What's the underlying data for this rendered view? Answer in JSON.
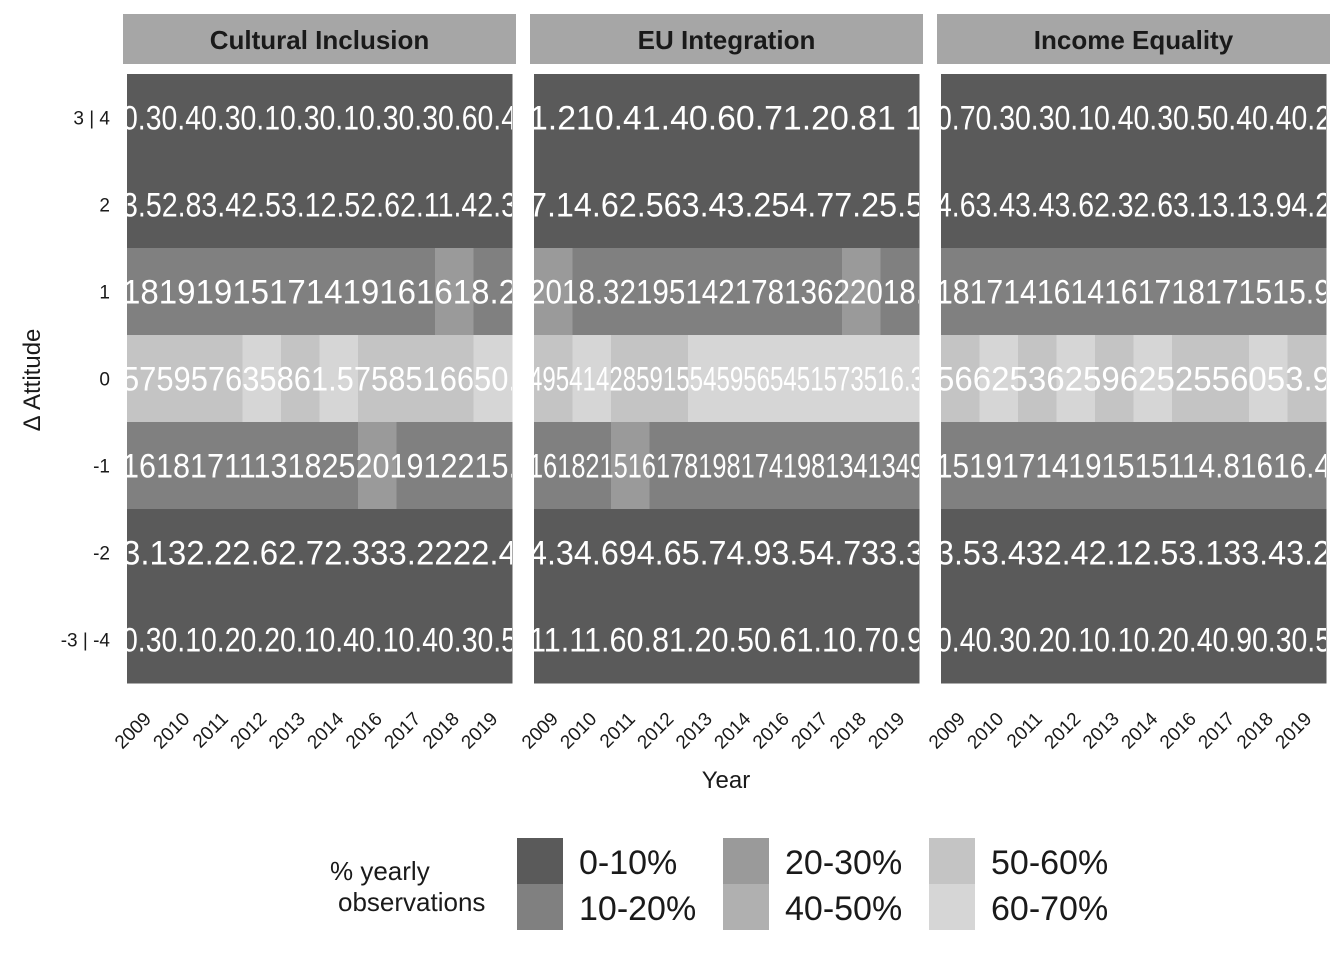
{
  "chart_data": {
    "type": "heatmap",
    "xlabel": "Year",
    "ylabel": "Δ Attitude",
    "x": [
      "2009",
      "2010",
      "2011",
      "2012",
      "2013",
      "2014",
      "2016",
      "2017",
      "2018",
      "2019"
    ],
    "y": [
      "3 | 4",
      "2",
      "1",
      "0",
      "-1",
      "-2",
      "-3 | -4"
    ],
    "facets": [
      {
        "title": "Cultural Inclusion",
        "cells": [
          [
            "0.3",
            "0.4",
            "0.3",
            "0.1",
            "0.3",
            "0.1",
            "0.3",
            "0.3",
            "0.6",
            "0.4"
          ],
          [
            "3.5",
            "2.8",
            "3.4",
            "2.5",
            "3.1",
            "2.5",
            "2.6",
            "2.1",
            "1.4",
            "2.3"
          ],
          [
            "18",
            "19",
            "19",
            "15",
            "17",
            "14",
            "19",
            "16",
            "26",
            "18.2"
          ],
          [
            "57",
            "59",
            "57",
            "63",
            "58",
            "61",
            "57",
            "58",
            "51",
            "60"
          ],
          [
            "16",
            "18",
            "17",
            "13",
            "18",
            "15",
            "24",
            "19",
            "21",
            "15"
          ],
          [
            "3.1",
            "3",
            "2.2",
            "2.6",
            "2.7",
            "2.3",
            "3",
            "3.2",
            "2",
            "2.4"
          ],
          [
            "0.3",
            "0.1",
            "0.2",
            "0.2",
            "0.1",
            "0.4",
            "0.1",
            "0.4",
            "0.3",
            "0.5"
          ]
        ],
        "bins": [
          [
            0,
            0,
            0,
            0,
            0,
            0,
            0,
            0,
            0,
            0
          ],
          [
            0,
            0,
            0,
            0,
            0,
            0,
            0,
            0,
            0,
            0
          ],
          [
            1,
            1,
            1,
            1,
            1,
            1,
            1,
            1,
            2,
            1
          ],
          [
            4,
            4,
            4,
            5,
            4,
            5,
            4,
            4,
            4,
            5
          ],
          [
            1,
            1,
            1,
            1,
            1,
            1,
            2,
            1,
            1,
            1
          ],
          [
            0,
            0,
            0,
            0,
            0,
            0,
            0,
            0,
            0,
            0
          ],
          [
            0,
            0,
            0,
            0,
            0,
            0,
            0,
            0,
            0,
            0
          ]
        ],
        "line_labels": {
          "3 | 4": "0.30.40.30.10.30.10.30.30.60.4",
          "2": "3.52.83.42.53.12.52.62.11.42.3",
          "1": "18191915171419161618.2",
          "0": "575957635861.5758516650.",
          "-1": "16181711131825201912215.",
          "-2": "3.132.22.62.72.333.2222.4",
          "-3 | -4": "0.30.10.20.20.10.40.10.40.30.5"
        }
      },
      {
        "title": "EU Integration",
        "cells": [
          [
            "1.2",
            "1",
            "0.4",
            "1.4",
            "0.6",
            "0.7",
            "1.2",
            "0.8",
            "1",
            "1"
          ],
          [
            "7.1",
            "4.6",
            "2.5",
            "6",
            "3.4",
            "3.2",
            "5",
            "4.7",
            "7.2",
            "5.5"
          ],
          [
            "20",
            "18",
            "13.3",
            "21",
            "19",
            "14",
            "21",
            "18",
            "22",
            "18."
          ],
          [
            "49",
            "54",
            "43",
            "59",
            "54",
            "59",
            "56",
            "54",
            "57",
            "56.3"
          ],
          [
            "16",
            "18",
            "22",
            "15",
            "17",
            "18",
            "18",
            "17",
            "19",
            "14.9"
          ],
          [
            "4.3",
            "4.6",
            "9",
            "4.6",
            "5.7",
            "4.9",
            "3.5",
            "4.7",
            "3",
            "3.3"
          ],
          [
            "1",
            "1.1",
            "1.6",
            "0.8",
            "1.2",
            "0.5",
            "0.6",
            "1.1",
            "0.7",
            "0.9"
          ]
        ],
        "bins": [
          [
            0,
            0,
            0,
            0,
            0,
            0,
            0,
            0,
            0,
            0
          ],
          [
            0,
            0,
            0,
            0,
            0,
            0,
            0,
            0,
            0,
            0
          ],
          [
            2,
            1,
            1,
            1,
            1,
            1,
            1,
            1,
            2,
            1
          ],
          [
            4,
            5,
            4,
            4,
            5,
            5,
            5,
            5,
            5,
            5
          ],
          [
            1,
            1,
            2,
            1,
            1,
            1,
            1,
            1,
            1,
            1
          ],
          [
            0,
            0,
            0,
            0,
            0,
            0,
            0,
            0,
            0,
            0
          ],
          [
            0,
            0,
            0,
            0,
            0,
            0,
            0,
            0,
            0,
            0
          ]
        ],
        "line_labels": {
          "3 | 4": "1.210.41.40.60.71.20.81 1",
          "2": "7.14.62.563.43.254.77.25.5",
          "1": "2018.3219514217813622018.",
          "0": "4954142859155459565451573516.3",
          "-1": "1618215161781981741981341349",
          "-2": "4.34.694.65.74.93.54.733.3",
          "-3 | -4": "11.11.60.81.20.50.61.10.70.9"
        }
      },
      {
        "title": "Income Equality",
        "cells": [
          [
            "0.7",
            "0.3",
            "0.3",
            "0.1",
            "0.4",
            "0.3",
            "0.5",
            "0.4",
            "0.4",
            "0.2"
          ],
          [
            "4.6",
            "3.4",
            "3.4",
            "3.6",
            "2.3",
            "2.6",
            "3.1",
            "3.1",
            "3.9",
            "4.2"
          ],
          [
            "18",
            "17",
            "14",
            "16",
            "14",
            "16",
            "17",
            "18",
            "15",
            "15.9"
          ],
          [
            "56",
            "62",
            "53",
            "62",
            "59",
            "62",
            "52",
            "55",
            "60",
            "53.9"
          ],
          [
            "15",
            "19",
            "17",
            "14",
            "19",
            "15",
            "15",
            "14.8",
            "16",
            "16.4"
          ],
          [
            "3.5",
            "3.4",
            "3",
            "2.4",
            "2.1",
            "2.5",
            "3.1",
            "3",
            "3.4",
            "3.2"
          ],
          [
            "0.4",
            "0.3",
            "0.2",
            "0.1",
            "0.1",
            "0.2",
            "0.4",
            "0.9",
            "0.3",
            "0.5"
          ]
        ],
        "bins": [
          [
            0,
            0,
            0,
            0,
            0,
            0,
            0,
            0,
            0,
            0
          ],
          [
            0,
            0,
            0,
            0,
            0,
            0,
            0,
            0,
            0,
            0
          ],
          [
            1,
            1,
            1,
            1,
            1,
            1,
            1,
            1,
            1,
            1
          ],
          [
            4,
            5,
            4,
            5,
            4,
            5,
            4,
            4,
            5,
            4
          ],
          [
            1,
            1,
            1,
            1,
            1,
            1,
            1,
            1,
            1,
            1
          ],
          [
            0,
            0,
            0,
            0,
            0,
            0,
            0,
            0,
            0,
            0
          ],
          [
            0,
            0,
            0,
            0,
            0,
            0,
            0,
            0,
            0,
            0
          ]
        ],
        "line_labels": {
          "3 | 4": "0.70.30.30.10.40.30.50.40.40.2",
          "2": "4.63.43.43.62.32.63.13.13.94.2",
          "1": "1817141614161718171515.9",
          "0": "56625362596252556053.9",
          "-1": "15191714191515114.81616.4",
          "-2": "3.53.432.42.12.53.133.43.2",
          "-3 | -4": "0.40.30.20.10.10.20.40.90.30.5"
        }
      }
    ],
    "legend": {
      "title_line1": "% yearly",
      "title_line2": "observations",
      "entries": [
        {
          "label": "0-10%",
          "color": "#5a5a5a"
        },
        {
          "label": "10-20%",
          "color": "#808080"
        },
        {
          "label": "20-30%",
          "color": "#9a9a9a"
        },
        {
          "label": "40-50%",
          "color": "#b0b0b0"
        },
        {
          "label": "50-60%",
          "color": "#c4c4c4"
        },
        {
          "label": "60-70%",
          "color": "#d6d6d6"
        }
      ]
    },
    "colors": {
      "strip_bg": "#a6a6a6",
      "cell_text": "#ffffff",
      "bins": [
        "#5a5a5a",
        "#808080",
        "#9a9a9a",
        "#b0b0b0",
        "#c4c4c4",
        "#d6d6d6"
      ]
    },
    "legend_position": "bottom",
    "grid": false
  }
}
